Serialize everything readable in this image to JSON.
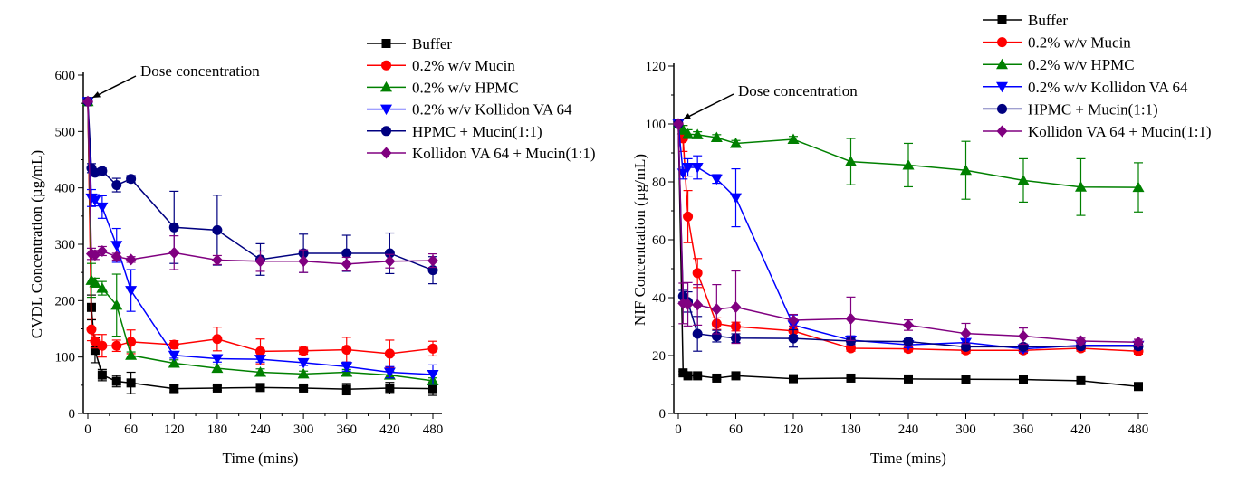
{
  "chart_data": [
    {
      "type": "line",
      "title": "",
      "xlabel": "Time (mins)",
      "ylabel": "CVDL Concentration (µg/mL)",
      "xlim": [
        0,
        480
      ],
      "ylim": [
        0,
        600
      ],
      "xticks": [
        0,
        60,
        120,
        180,
        240,
        300,
        360,
        420,
        480
      ],
      "yticks": [
        0,
        100,
        200,
        300,
        400,
        500,
        600
      ],
      "legend_position": "top-right",
      "annotation": "Dose concentration",
      "annotation_point": [
        0,
        553
      ],
      "x": [
        0,
        5,
        10,
        20,
        40,
        60,
        120,
        180,
        240,
        300,
        360,
        420,
        480
      ],
      "series": [
        {
          "name": "Buffer",
          "color": "#000000",
          "marker": "square",
          "values": [
            553,
            188,
            112,
            68,
            57,
            54,
            44,
            45,
            46,
            45,
            43,
            45,
            44
          ],
          "errors": [
            0,
            22,
            22,
            10,
            10,
            19,
            6,
            4,
            4,
            4,
            10,
            10,
            12
          ]
        },
        {
          "name": "0.2% w/v Mucin",
          "color": "#ff0000",
          "marker": "circle",
          "values": [
            553,
            149,
            128,
            120,
            120,
            127,
            122,
            132,
            110,
            111,
            113,
            106,
            115
          ],
          "errors": [
            0,
            20,
            12,
            20,
            10,
            21,
            7,
            21,
            22,
            6,
            22,
            24,
            13
          ]
        },
        {
          "name": "0.2% w/v HPMC",
          "color": "#008000",
          "marker": "triangle-up",
          "values": [
            553,
            236,
            232,
            222,
            192,
            103,
            89,
            80,
            73,
            70,
            73,
            68,
            58
          ],
          "errors": [
            0,
            30,
            8,
            12,
            55,
            6,
            6,
            6,
            6,
            5,
            5,
            6,
            5
          ]
        },
        {
          "name": "0.2% w/v Kollidon VA 64",
          "color": "#0000ff",
          "marker": "triangle-down",
          "values": [
            553,
            382,
            378,
            366,
            298,
            218,
            103,
            97,
            96,
            90,
            83,
            73,
            69
          ],
          "errors": [
            0,
            15,
            10,
            20,
            30,
            37,
            5,
            6,
            5,
            5,
            8,
            10,
            17
          ]
        },
        {
          "name": "HPMC + Mucin(1:1)",
          "color": "#000080",
          "marker": "circle",
          "values": [
            553,
            435,
            427,
            430,
            405,
            416,
            330,
            325,
            273,
            284,
            284,
            284,
            254
          ],
          "errors": [
            0,
            8,
            6,
            5,
            12,
            6,
            64,
            62,
            28,
            34,
            32,
            36,
            24
          ]
        },
        {
          "name": "Kollidon VA 64 + Mucin(1:1)",
          "color": "#800080",
          "marker": "diamond",
          "values": [
            553,
            283,
            281,
            288,
            278,
            273,
            285,
            272,
            270,
            270,
            265,
            270,
            271
          ],
          "errors": [
            0,
            10,
            8,
            8,
            6,
            5,
            30,
            8,
            18,
            20,
            12,
            12,
            12
          ]
        }
      ]
    },
    {
      "type": "line",
      "title": "",
      "xlabel": "Time (mins)",
      "ylabel": "NIF Concentration (µg/mL)",
      "xlim": [
        0,
        480
      ],
      "ylim": [
        0,
        120
      ],
      "xticks": [
        0,
        60,
        120,
        180,
        240,
        300,
        360,
        420,
        480
      ],
      "yticks": [
        0,
        20,
        40,
        60,
        80,
        100,
        120
      ],
      "legend_position": "top-right",
      "annotation": "Dose concentration",
      "annotation_point": [
        0,
        100
      ],
      "x": [
        0,
        5,
        10,
        20,
        40,
        60,
        120,
        180,
        240,
        300,
        360,
        420,
        480
      ],
      "series": [
        {
          "name": "Buffer",
          "color": "#000000",
          "marker": "square",
          "values": [
            100,
            14,
            13,
            13,
            12.2,
            13,
            12,
            12.2,
            11.9,
            11.8,
            11.7,
            11.3,
            9.3
          ],
          "errors": [
            0,
            0.5,
            0.5,
            0.5,
            0.5,
            0.5,
            0.5,
            0.5,
            0.5,
            0.5,
            1.2,
            0.5,
            0.5
          ]
        },
        {
          "name": "0.2% w/v Mucin",
          "color": "#ff0000",
          "marker": "circle",
          "values": [
            100,
            95,
            68,
            48.5,
            31,
            30,
            28.5,
            22.5,
            22.3,
            21.8,
            21.8,
            22.5,
            21.5
          ],
          "errors": [
            0,
            4.5,
            9,
            5,
            2,
            1.5,
            1.5,
            1,
            1,
            1,
            1,
            1,
            1
          ]
        },
        {
          "name": "0.2% w/v HPMC",
          "color": "#008000",
          "marker": "triangle-up",
          "values": [
            100,
            98,
            96.5,
            96.3,
            95.3,
            93.3,
            94.7,
            87,
            85.8,
            84,
            80.5,
            78.2,
            78.1
          ],
          "errors": [
            0,
            1.5,
            1.5,
            1,
            1,
            1,
            1,
            8,
            7.5,
            10,
            7.5,
            9.8,
            8.5
          ]
        },
        {
          "name": "0.2% w/v Kollidon VA 64",
          "color": "#0000ff",
          "marker": "triangle-down",
          "values": [
            100,
            83,
            85,
            85,
            81,
            74.5,
            30.5,
            25.3,
            23.7,
            24.5,
            22.3,
            23.5,
            23.5
          ],
          "errors": [
            0,
            2,
            3,
            4,
            1.5,
            10,
            3.5,
            1.5,
            1,
            1,
            1,
            1,
            1
          ]
        },
        {
          "name": "HPMC + Mucin(1:1)",
          "color": "#000080",
          "marker": "circle",
          "values": [
            100,
            40.5,
            38.5,
            27.5,
            26.7,
            26,
            25.9,
            25,
            24.8,
            23,
            23,
            23.2,
            23.2
          ],
          "errors": [
            0,
            2,
            3.5,
            6,
            2,
            1.5,
            3,
            1,
            1,
            1,
            1,
            1,
            1
          ]
        },
        {
          "name": "Kollidon VA 64 + Mucin(1:1)",
          "color": "#800080",
          "marker": "diamond",
          "values": [
            100,
            38,
            37.7,
            37.5,
            36,
            36.7,
            32.2,
            32.7,
            30.5,
            27.6,
            26.7,
            25,
            24.6
          ],
          "errors": [
            0,
            7,
            7.5,
            7,
            8.5,
            12.5,
            2,
            7.5,
            1.8,
            3.5,
            2.8,
            1,
            1
          ]
        }
      ]
    }
  ]
}
